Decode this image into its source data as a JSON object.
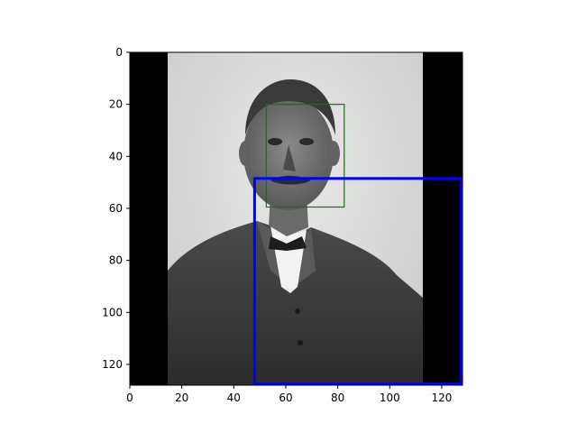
{
  "chart_data": {
    "type": "image",
    "title": "",
    "xlabel": "",
    "ylabel": "",
    "xlim": [
      0,
      128
    ],
    "ylim": [
      128,
      0
    ],
    "y_inverted": true,
    "grid": false,
    "x_ticks": [
      0,
      20,
      40,
      60,
      80,
      100,
      120
    ],
    "y_ticks": [
      0,
      20,
      40,
      60,
      80,
      100,
      120
    ],
    "image": {
      "description_color": "grayscale",
      "photo_extent_x": [
        14.5,
        112.5
      ],
      "letterbox_color": "#000000"
    },
    "boxes": [
      {
        "name": "green-box",
        "x0": 52.5,
        "y0": 20,
        "x1": 82.5,
        "y1": 59.5,
        "color": "#008000",
        "stroke": "thin"
      },
      {
        "name": "blue-box",
        "x0": 48,
        "y0": 48.5,
        "x1": 127.5,
        "y1": 127.5,
        "color": "#0000ff",
        "stroke": "thick"
      }
    ]
  }
}
